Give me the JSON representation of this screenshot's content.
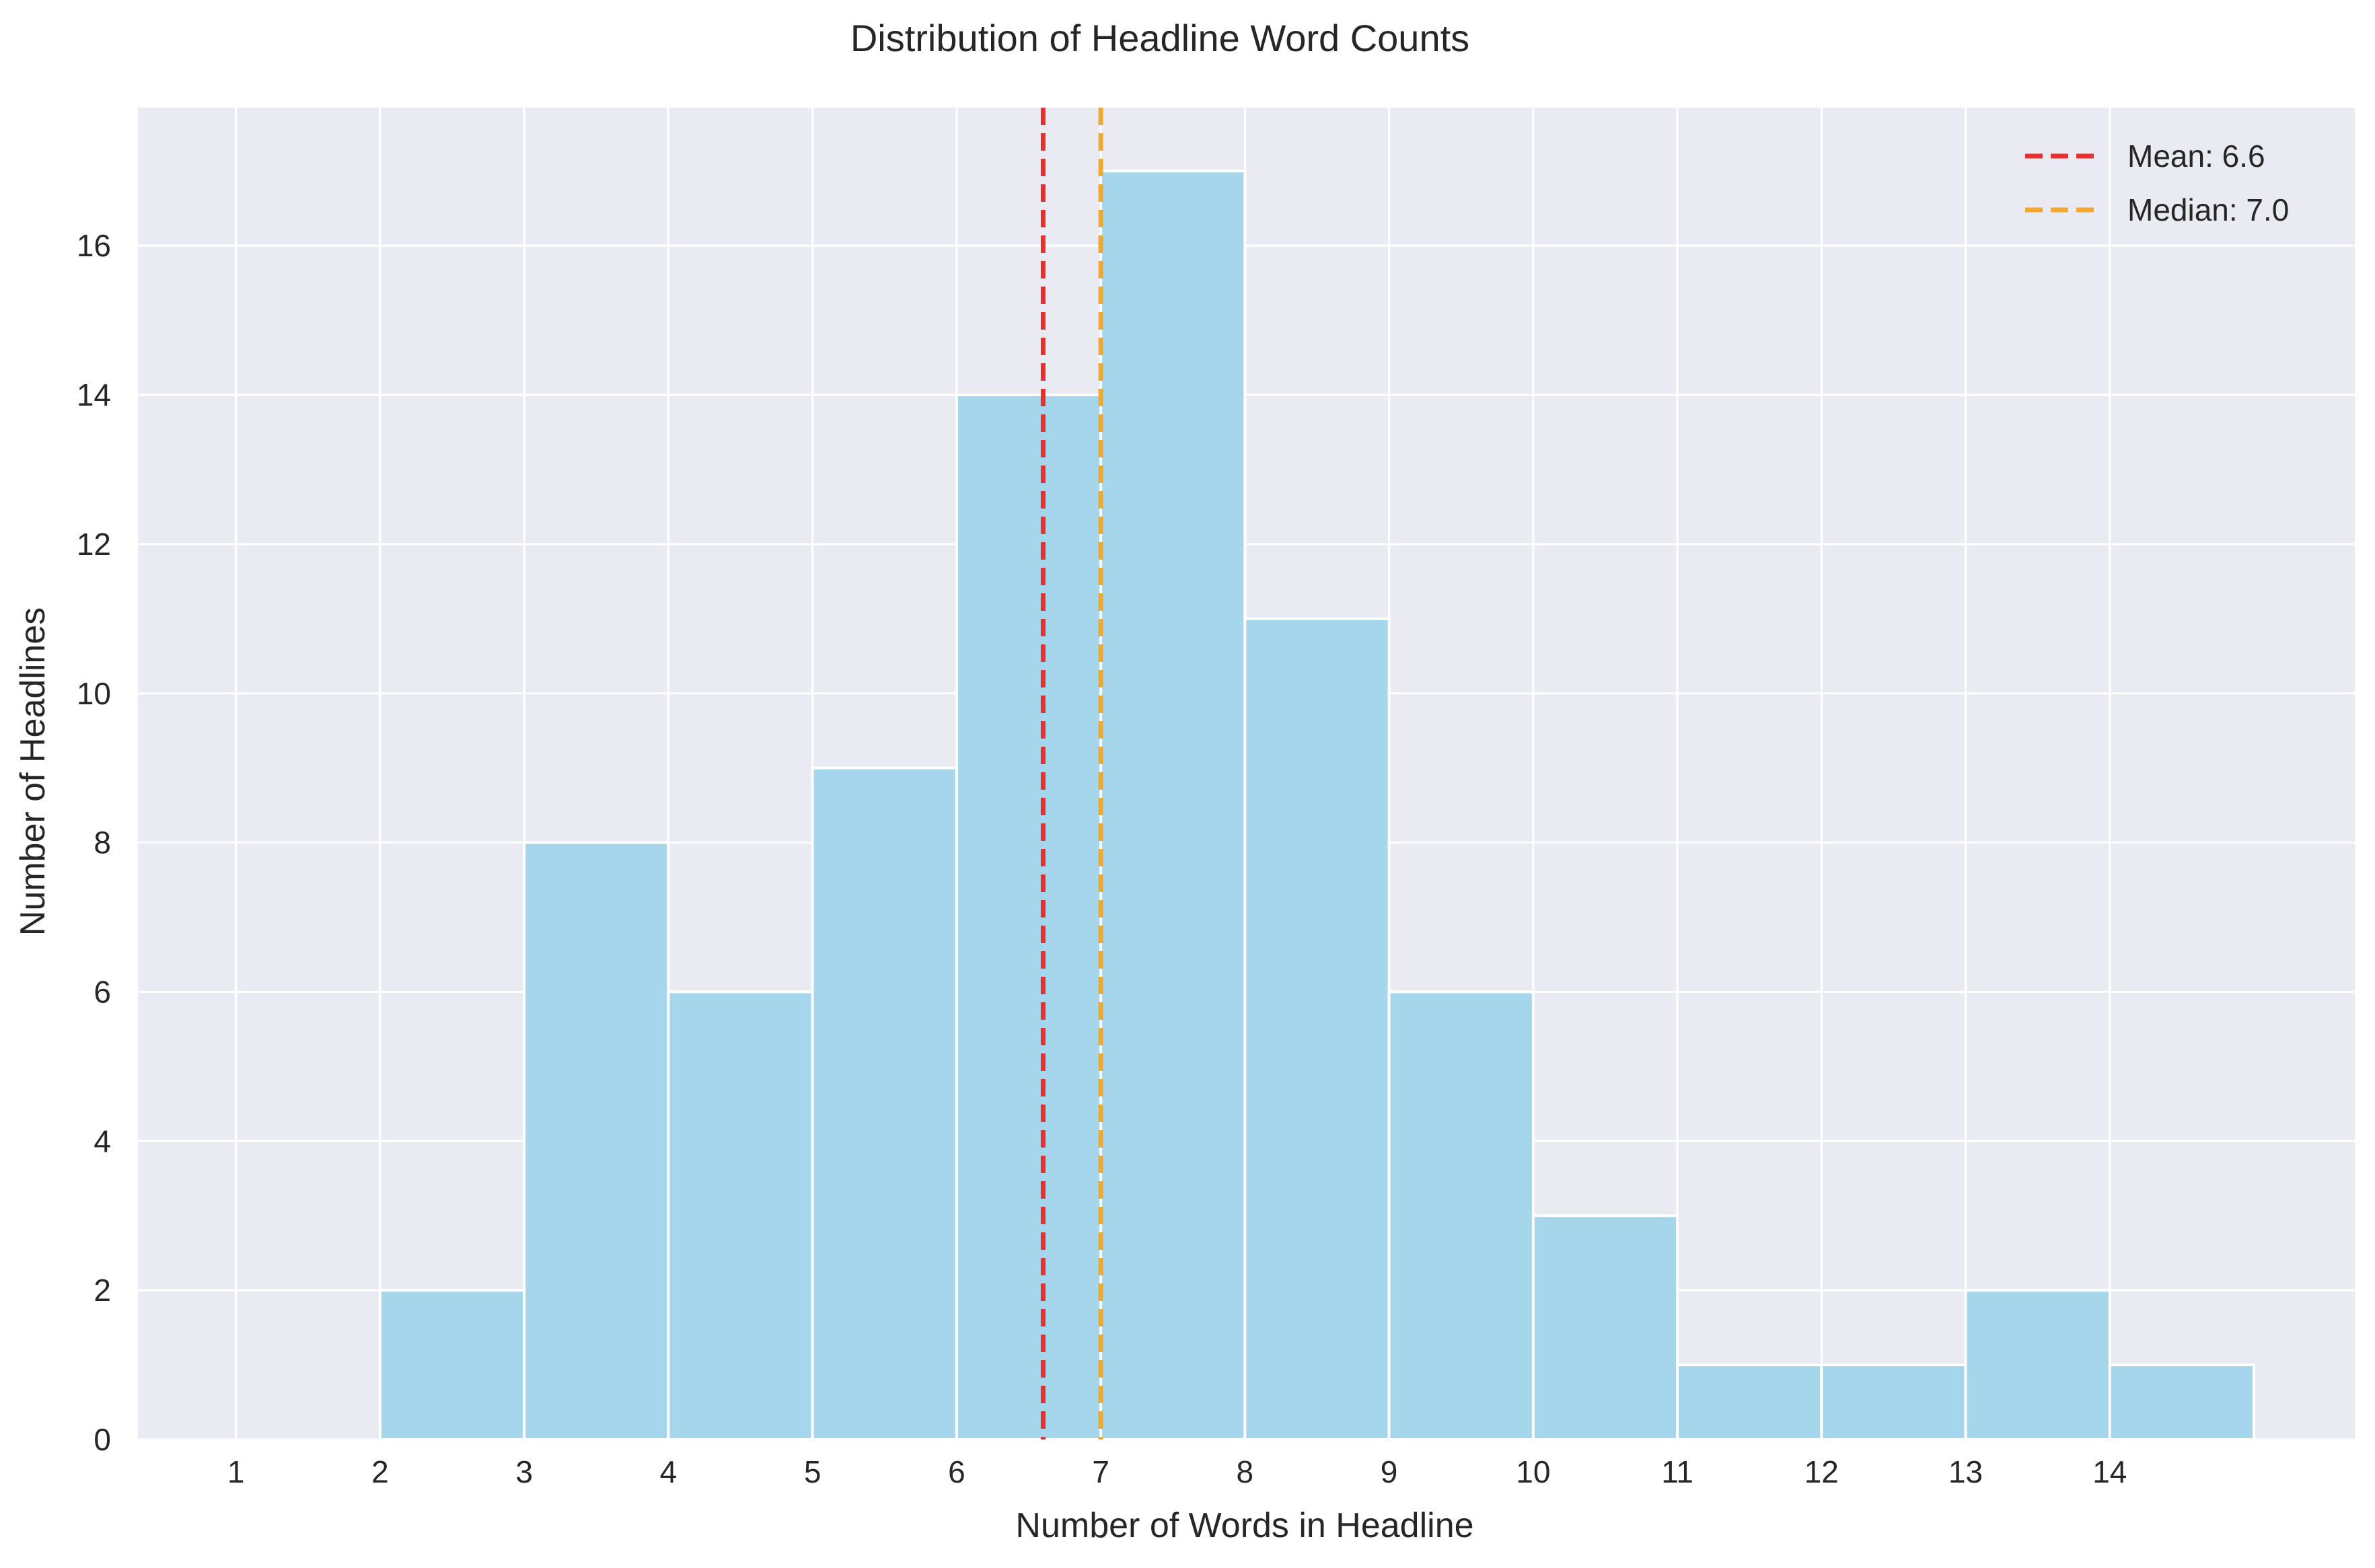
{
  "chart_data": {
    "type": "bar",
    "title": "Distribution of Headline Word Counts",
    "xlabel": "Number of Words in Headline",
    "ylabel": "Number of Headlines",
    "bins": [
      {
        "start": 2,
        "end": 3,
        "count": 2
      },
      {
        "start": 3,
        "end": 4,
        "count": 8
      },
      {
        "start": 4,
        "end": 5,
        "count": 6
      },
      {
        "start": 5,
        "end": 6,
        "count": 9
      },
      {
        "start": 6,
        "end": 7,
        "count": 14
      },
      {
        "start": 7,
        "end": 8,
        "count": 17
      },
      {
        "start": 8,
        "end": 9,
        "count": 11
      },
      {
        "start": 9,
        "end": 10,
        "count": 6
      },
      {
        "start": 10,
        "end": 11,
        "count": 3
      },
      {
        "start": 11,
        "end": 12,
        "count": 1
      },
      {
        "start": 12,
        "end": 13,
        "count": 1
      },
      {
        "start": 13,
        "end": 14,
        "count": 2
      },
      {
        "start": 14,
        "end": 15,
        "count": 1
      }
    ],
    "xticks": [
      1,
      2,
      3,
      4,
      5,
      6,
      7,
      8,
      9,
      10,
      11,
      12,
      13,
      14
    ],
    "yticks": [
      0,
      2,
      4,
      6,
      8,
      10,
      12,
      14,
      16
    ],
    "xlim": [
      0.32,
      15.7
    ],
    "ylim": [
      0,
      17.85
    ],
    "grid": true,
    "legend_position": "top-right",
    "reference_lines": [
      {
        "label": "Mean: 6.6",
        "x": 6.6,
        "color": "#e8302f",
        "style": "dashed"
      },
      {
        "label": "Median: 7.0",
        "x": 7.0,
        "color": "#f0a830",
        "style": "dashed"
      }
    ],
    "colors": {
      "bar_fill": "#a5d6ec",
      "bar_edge": "#ffffff",
      "plot_background": "#eaeaf2",
      "grid": "#ffffff"
    }
  }
}
